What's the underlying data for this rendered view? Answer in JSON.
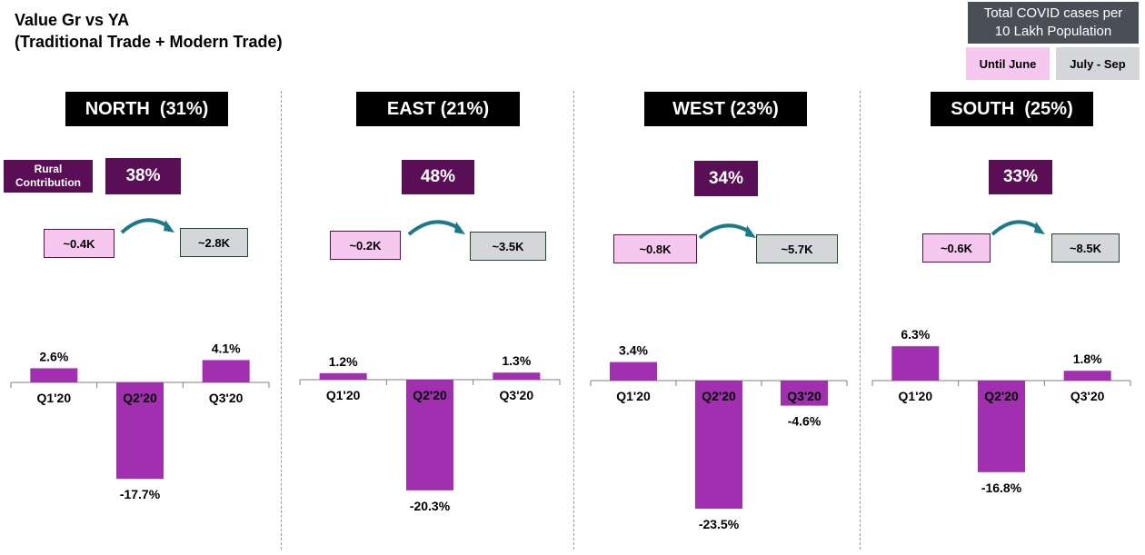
{
  "title_line1": "Value Gr vs YA",
  "title_line2": "(Traditional Trade + Modern Trade)",
  "covid_box": {
    "line1": "Total COVID cases per",
    "line2": "10 Lakh Population"
  },
  "legend": {
    "until_june": "Until June",
    "july_sep": "July - Sep"
  },
  "rural_contribution": {
    "line1": "Rural",
    "line2": "Contribution"
  },
  "colors": {
    "bar": "#a12fb0",
    "rural": "#5a0e56",
    "until_june": "#f6c8ef",
    "july_sep": "#d4d6da",
    "arrow": "#1a7a8a"
  },
  "regions": [
    {
      "label": "NORTH  (31%)",
      "rural": "38%",
      "cases_june": "~0.4K",
      "cases_sep": "~2.8K"
    },
    {
      "label": "EAST (21%)",
      "rural": "48%",
      "cases_june": "~0.2K",
      "cases_sep": "~3.5K"
    },
    {
      "label": "WEST (23%)",
      "rural": "34%",
      "cases_june": "~0.8K",
      "cases_sep": "~5.7K"
    },
    {
      "label": "SOUTH  (25%)",
      "rural": "33%",
      "cases_june": "~0.6K",
      "cases_sep": "~8.5K"
    }
  ],
  "chart_data": {
    "type": "bar",
    "categories": [
      "Q1'20",
      "Q2'20",
      "Q3'20"
    ],
    "series": [
      {
        "name": "NORTH",
        "values": [
          2.6,
          -17.7,
          4.1
        ],
        "labels": [
          "2.6%",
          "-17.7%",
          "4.1%"
        ]
      },
      {
        "name": "EAST",
        "values": [
          1.2,
          -20.3,
          1.3
        ],
        "labels": [
          "1.2%",
          "-20.3%",
          "1.3%"
        ]
      },
      {
        "name": "WEST",
        "values": [
          3.4,
          -23.5,
          -4.6
        ],
        "labels": [
          "3.4%",
          "-23.5%",
          "-4.6%"
        ]
      },
      {
        "name": "SOUTH",
        "values": [
          6.3,
          -16.8,
          1.8
        ],
        "labels": [
          "6.3%",
          "-16.8%",
          "1.8%"
        ]
      }
    ],
    "title": "Value Gr vs YA",
    "ylabel": "",
    "grid": false,
    "legend": "top-right"
  }
}
